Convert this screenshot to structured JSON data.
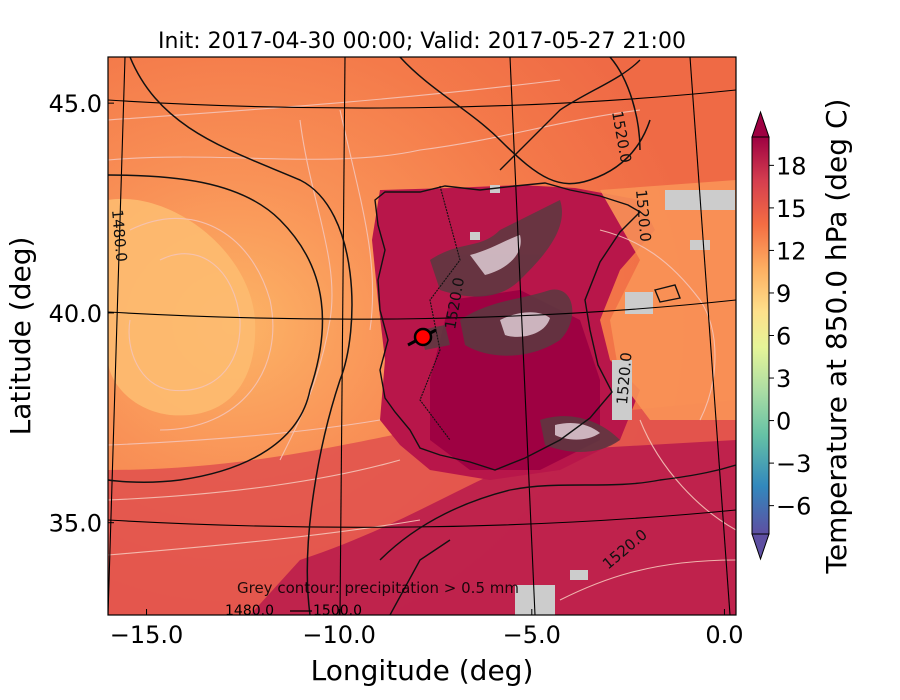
{
  "title": "Init: 2017-04-30 00:00; Valid: 2017-05-27 21:00",
  "xlabel": "Longitude (deg)",
  "ylabel": "Latitude (deg)",
  "colorbar": {
    "label": "Temperature at 850.0 hPa (deg C)",
    "ticks": [
      "−6",
      "−3",
      "0",
      "3",
      "6",
      "9",
      "12",
      "15",
      "18"
    ],
    "tick_values": [
      -6,
      -3,
      0,
      3,
      6,
      9,
      12,
      15,
      18
    ],
    "range": [
      -8,
      20
    ],
    "colors": [
      "#5e4fa2",
      "#3288bd",
      "#66c2a5",
      "#abdda4",
      "#e6f598",
      "#fee08b",
      "#fdae61",
      "#f46d43",
      "#d53e4f",
      "#9e0142"
    ]
  },
  "map": {
    "xticks": [
      "−15.0",
      "−10.0",
      "−5.0",
      "0.0"
    ],
    "xtick_values": [
      -15,
      -10,
      -5,
      0
    ],
    "yticks": [
      "35.0",
      "40.0",
      "45.0"
    ],
    "ytick_values": [
      35,
      40,
      45
    ],
    "xlim": [
      -16,
      0.3
    ],
    "ylim": [
      32.8,
      46.1
    ],
    "contour_labels": [
      "1520.0",
      "1520.0",
      "1520.0",
      "1520.0",
      "1480.0",
      "1520.0"
    ],
    "marker_color": "#ff0000"
  },
  "legend": {
    "precip_note": "Grey contour: precipitation > 0.5 mm",
    "line_labels": [
      "1480.0",
      "1500.0"
    ]
  }
}
